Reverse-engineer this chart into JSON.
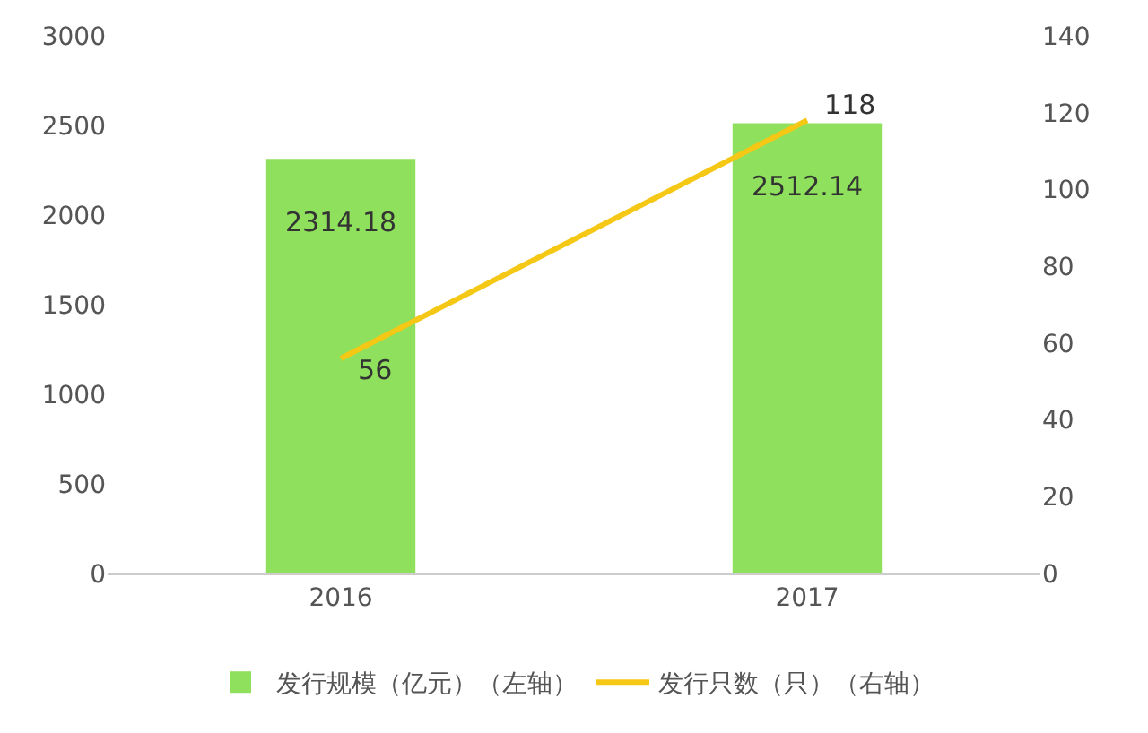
{
  "chart_data": {
    "type": "bar",
    "categories": [
      "2016",
      "2017"
    ],
    "series": [
      {
        "name": "发行规模（亿元）（左轴）",
        "color": "#8fe05c",
        "values": [
          2314.18,
          2512.14
        ]
      },
      {
        "name": "发行只数（只）（右轴）",
        "type": "line",
        "axis": "y2",
        "color": "#f5c816",
        "values": [
          56,
          118
        ]
      }
    ],
    "ylim": [
      0,
      3000
    ],
    "yticks": [
      0,
      500,
      1000,
      1500,
      2000,
      2500,
      3000
    ],
    "y2lim": [
      0,
      140
    ],
    "y2ticks": [
      0,
      20,
      40,
      60,
      80,
      100,
      120,
      140
    ],
    "data_labels": true,
    "legend": "bottom",
    "grid": false,
    "marker": "none",
    "line_style": "solid"
  }
}
